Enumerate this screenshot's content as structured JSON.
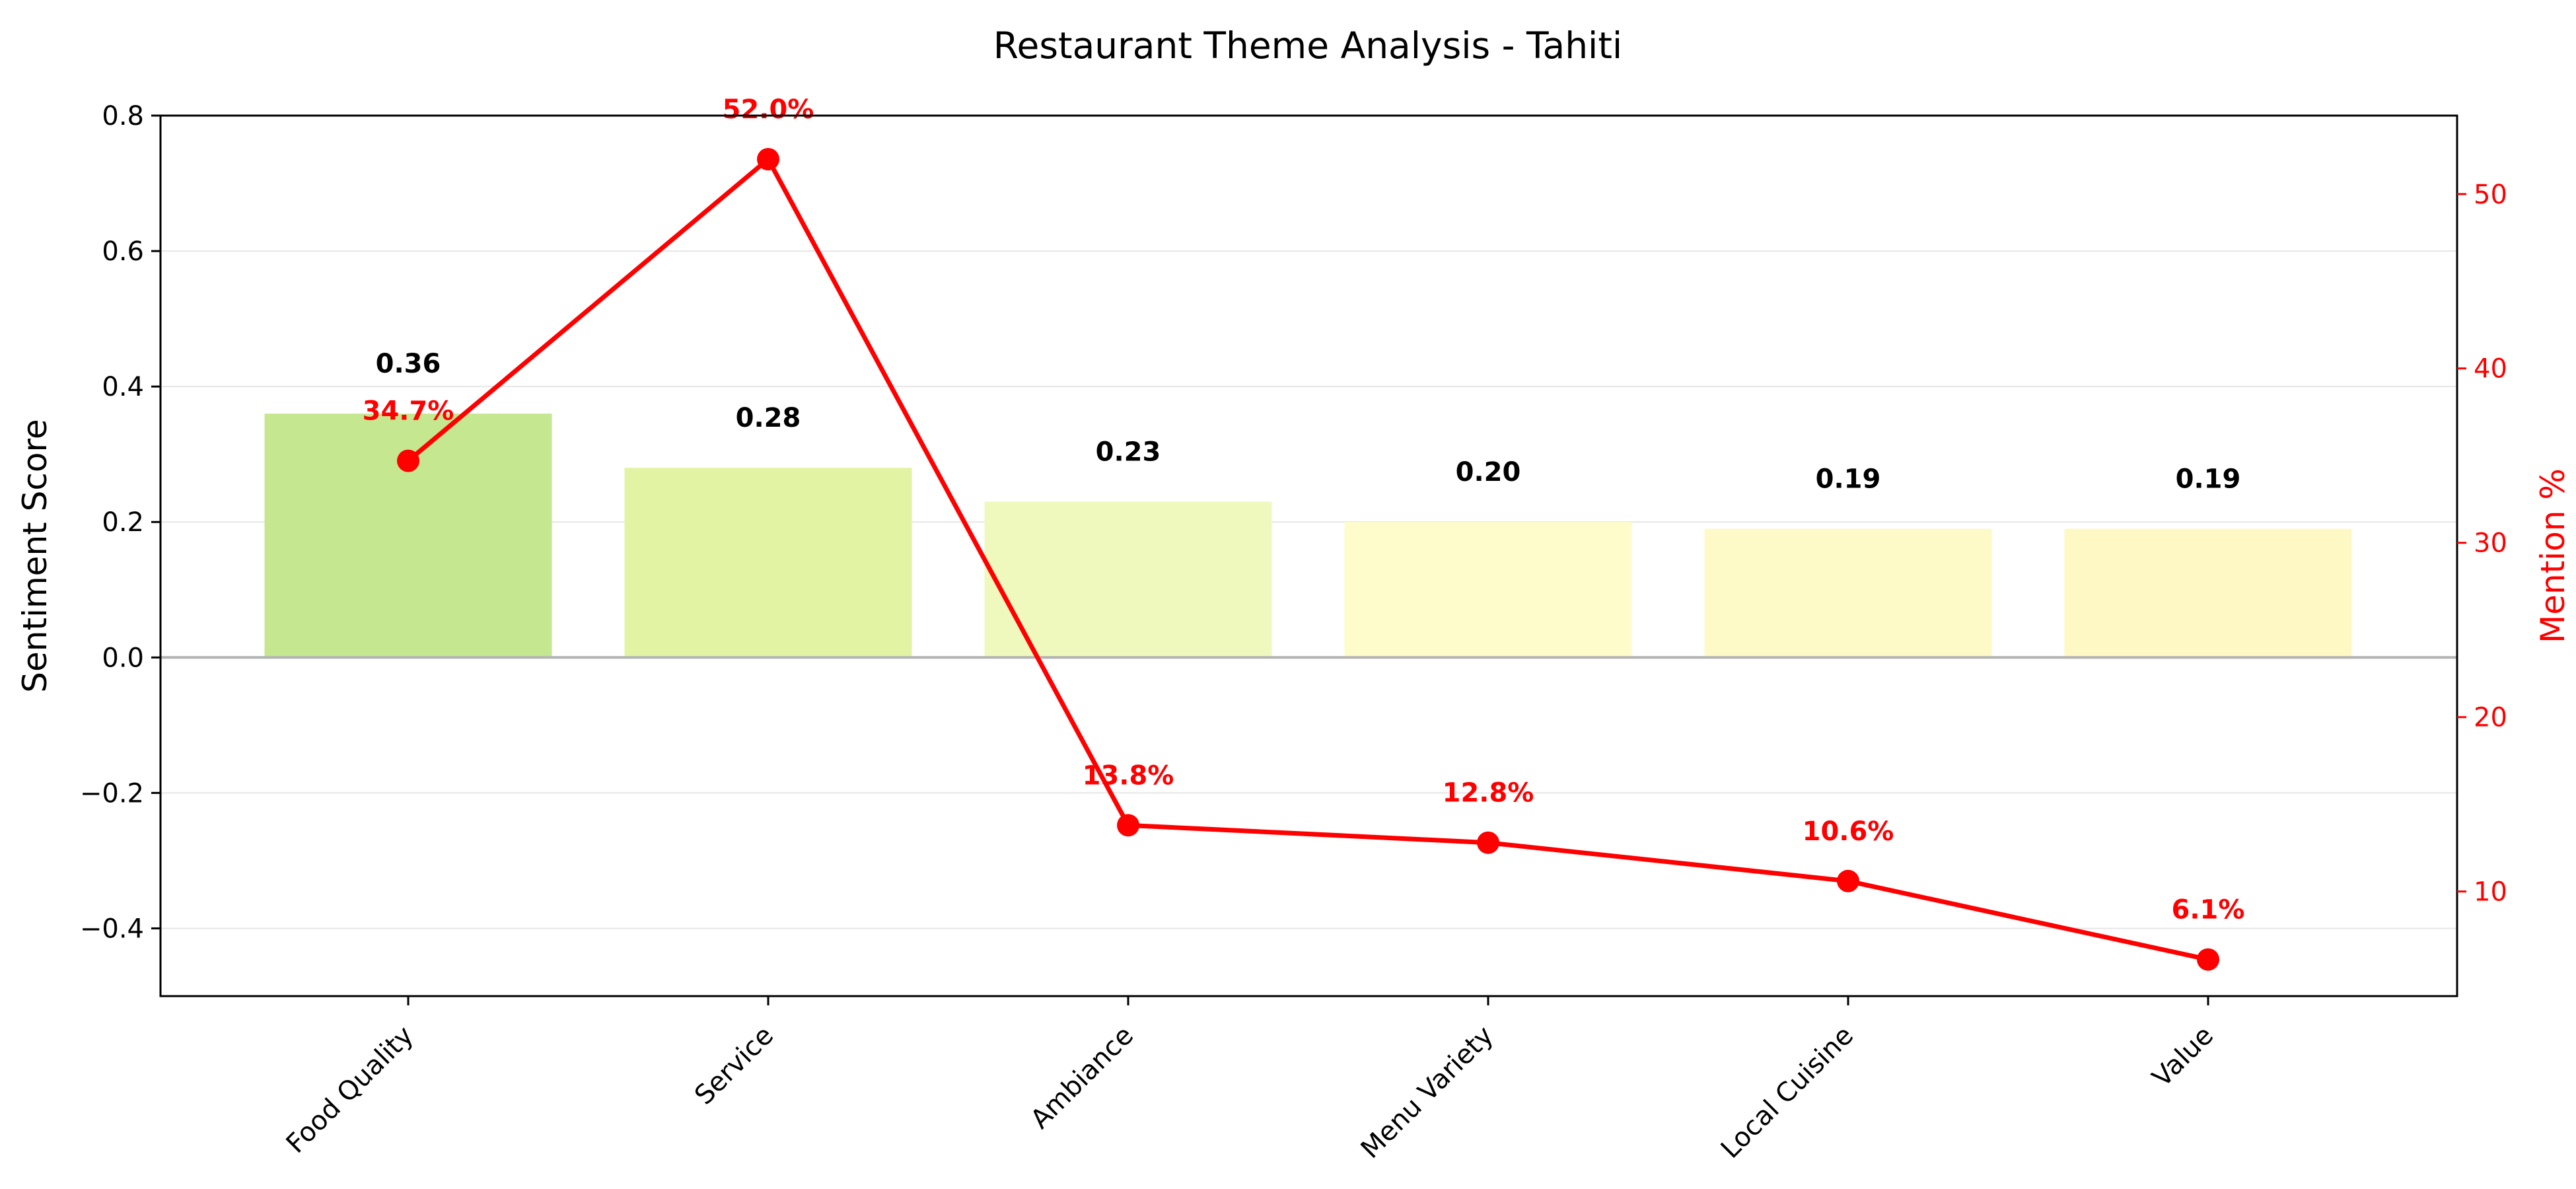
{
  "chart_data": {
    "type": "bar",
    "title": "Restaurant Theme Analysis - Tahiti",
    "categories": [
      "Food Quality",
      "Service",
      "Ambiance",
      "Menu Variety",
      "Local Cuisine",
      "Value"
    ],
    "series": [
      {
        "type": "bar",
        "axis": "left",
        "values": [
          0.36,
          0.28,
          0.23,
          0.2,
          0.19,
          0.19
        ],
        "value_labels": [
          "0.36",
          "0.28",
          "0.23",
          "0.20",
          "0.19",
          "0.19"
        ],
        "colors": [
          "#c5e78f",
          "#e2f4a4",
          "#f0f9bd",
          "#fefcca",
          "#fefac7",
          "#fef8c4"
        ]
      },
      {
        "type": "line",
        "axis": "right",
        "values": [
          34.7,
          52.0,
          13.8,
          12.8,
          10.6,
          6.1
        ],
        "value_labels": [
          "34.7%",
          "52.0%",
          "13.8%",
          "12.8%",
          "10.6%",
          "6.1%"
        ],
        "color": "#ff0000"
      }
    ],
    "ylabel": "Sentiment Score",
    "y2label": "Mention %",
    "ylim": [
      -0.5,
      0.8
    ],
    "y2lim": [
      4,
      54.5
    ],
    "yticks": [
      "0.8",
      "0.6",
      "0.4",
      "0.2",
      "0.0",
      "−0.2",
      "−0.4"
    ],
    "yticks_values": [
      0.8,
      0.6,
      0.4,
      0.2,
      0.0,
      -0.2,
      -0.4
    ],
    "y2ticks": [
      "50",
      "40",
      "30",
      "20",
      "10"
    ],
    "y2ticks_values": [
      50,
      40,
      30,
      20,
      10
    ],
    "grid": "horizontal",
    "legend": "none"
  }
}
